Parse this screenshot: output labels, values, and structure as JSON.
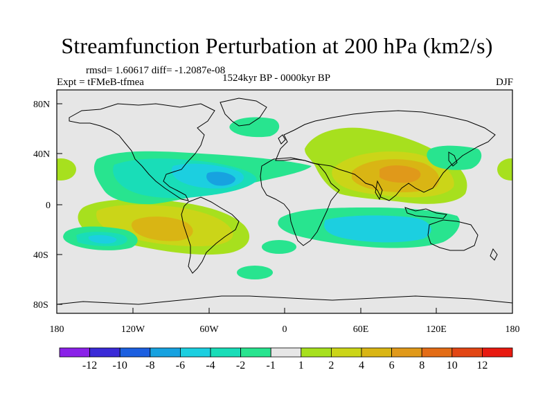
{
  "title": "Streamfunction Perturbation at 200 hPa (km2/s)",
  "stats": "rmsd= 1.60617 diff= -1.2087e-08",
  "experiment": "Expt = tFMeB-tfmea",
  "period": "1524kyr BP - 0000kyr BP",
  "season": "DJF",
  "lat_labels": [
    "80N",
    "40N",
    "0",
    "40S",
    "80S"
  ],
  "lon_labels": [
    "180",
    "120W",
    "60W",
    "0",
    "60E",
    "120E",
    "180"
  ],
  "colorbar": {
    "colors": [
      "#8a21e8",
      "#3a2ad7",
      "#1c5fe0",
      "#17a2e0",
      "#1ccfe0",
      "#19ddb8",
      "#28e48f",
      "#e6e6e6",
      "#a7e01e",
      "#cbd518",
      "#d9b514",
      "#e0991a",
      "#e36c16",
      "#e24614",
      "#e81a10"
    ],
    "labels": [
      "-12",
      "-10",
      "-8",
      "-6",
      "-4",
      "-2",
      "-1",
      "1",
      "2",
      "4",
      "6",
      "8",
      "10",
      "12"
    ]
  },
  "colors": {
    "ocean_bg": "#e6e6e6",
    "pos1": "#a7e01e",
    "pos2": "#cbd518",
    "pos3": "#d9b514",
    "pos4": "#e0991a",
    "neg1": "#28e48f",
    "neg2": "#19ddb8",
    "neg3": "#1ccfe0",
    "neg4": "#17a2e0"
  }
}
